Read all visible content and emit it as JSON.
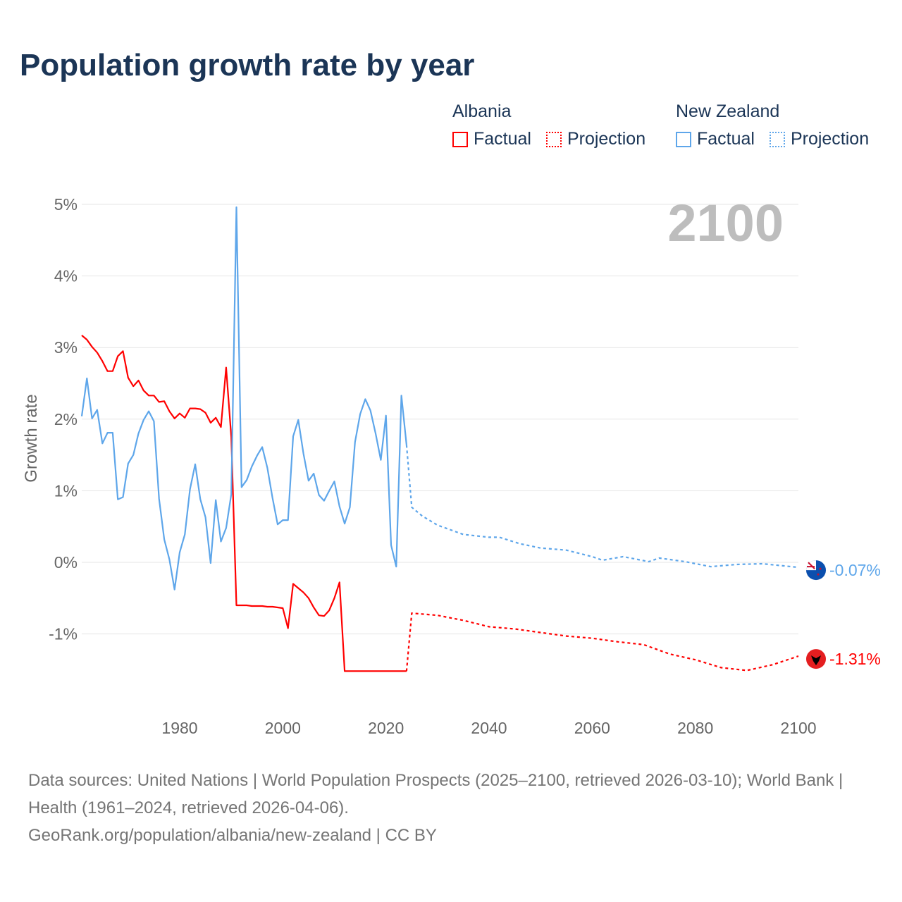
{
  "title": "Population growth rate by year",
  "legend": {
    "groups": [
      {
        "name": "Albania",
        "color": "#ff0000",
        "factual": "Factual",
        "projection": "Projection"
      },
      {
        "name": "New Zealand",
        "color": "#5ea6ea",
        "factual": "Factual",
        "projection": "Projection"
      }
    ]
  },
  "year_display": "2100",
  "footer": {
    "sources": "Data sources: United Nations | World Population Prospects (2025–2100, retrieved 2026-03-10); World Bank | Health (1961–2024, retrieved 2026-04-06).",
    "link": "GeoRank.org/population/albania/new-zealand | CC BY"
  },
  "chart_data": {
    "type": "line",
    "title": "Population growth rate by year",
    "xlabel": "",
    "ylabel": "Growth rate",
    "xlim": [
      1961,
      2100
    ],
    "ylim": [
      -2,
      5
    ],
    "x_ticks": [
      1980,
      2000,
      2020,
      2040,
      2060,
      2080,
      2100
    ],
    "y_ticks": [
      -1,
      0,
      1,
      2,
      3,
      4,
      5
    ],
    "y_tick_labels": [
      "-1%",
      "0%",
      "1%",
      "2%",
      "3%",
      "4%",
      "5%"
    ],
    "grid": true,
    "legend_position": "top-right",
    "series": [
      {
        "name": "Albania Factual",
        "country": "Albania",
        "style": "solid",
        "color": "#ff0000",
        "x_start": 1961,
        "values": [
          3.17,
          3.11,
          3.01,
          2.93,
          2.81,
          2.67,
          2.67,
          2.88,
          2.95,
          2.58,
          2.46,
          2.54,
          2.4,
          2.33,
          2.33,
          2.24,
          2.25,
          2.11,
          2.01,
          2.08,
          2.02,
          2.15,
          2.15,
          2.14,
          2.09,
          1.95,
          2.02,
          1.89,
          2.72,
          1.75,
          -0.6,
          -0.6,
          -0.6,
          -0.61,
          -0.61,
          -0.61,
          -0.62,
          -0.62,
          -0.63,
          -0.64,
          -0.92,
          -0.3,
          -0.36,
          -0.42,
          -0.5,
          -0.63,
          -0.74,
          -0.75,
          -0.67,
          -0.5,
          -0.28,
          -1.52,
          -1.52,
          -1.52,
          -1.52,
          -1.52,
          -1.52,
          -1.52,
          -1.52,
          -1.52,
          -1.52,
          -1.52,
          -1.52,
          -1.52
        ]
      },
      {
        "name": "Albania Projection",
        "country": "Albania",
        "style": "dotted",
        "color": "#ff0000",
        "x": [
          2024,
          2025,
          2030,
          2035,
          2040,
          2045,
          2050,
          2055,
          2060,
          2065,
          2070,
          2075,
          2080,
          2085,
          2090,
          2095,
          2100
        ],
        "values": [
          -1.52,
          -0.71,
          -0.74,
          -0.81,
          -0.9,
          -0.93,
          -0.98,
          -1.03,
          -1.06,
          -1.11,
          -1.15,
          -1.28,
          -1.36,
          -1.47,
          -1.51,
          -1.43,
          -1.31
        ]
      },
      {
        "name": "New Zealand Factual",
        "country": "New Zealand",
        "style": "solid",
        "color": "#5ea6ea",
        "x_start": 1961,
        "values": [
          2.04,
          2.57,
          2.01,
          2.13,
          1.66,
          1.81,
          1.81,
          0.88,
          0.91,
          1.38,
          1.5,
          1.8,
          1.99,
          2.11,
          1.97,
          0.89,
          0.32,
          0.04,
          -0.38,
          0.14,
          0.39,
          1.02,
          1.37,
          0.88,
          0.63,
          -0.01,
          0.87,
          0.29,
          0.48,
          0.95,
          4.96,
          1.05,
          1.15,
          1.34,
          1.49,
          1.61,
          1.32,
          0.9,
          0.53,
          0.59,
          0.59,
          1.76,
          1.99,
          1.52,
          1.14,
          1.24,
          0.94,
          0.86,
          1.0,
          1.13,
          0.78,
          0.54,
          0.77,
          1.68,
          2.07,
          2.28,
          2.12,
          1.8,
          1.43,
          2.05,
          0.24,
          -0.06,
          2.33,
          1.64
        ]
      },
      {
        "name": "New Zealand Projection",
        "country": "New Zealand",
        "style": "dotted",
        "color": "#5ea6ea",
        "x": [
          2024,
          2025,
          2027,
          2030,
          2035,
          2040,
          2042,
          2046,
          2050,
          2055,
          2060,
          2062,
          2066,
          2071,
          2073,
          2078,
          2083,
          2088,
          2093,
          2100
        ],
        "values": [
          1.64,
          0.77,
          0.65,
          0.52,
          0.39,
          0.35,
          0.35,
          0.26,
          0.2,
          0.17,
          0.08,
          0.03,
          0.08,
          0.01,
          0.06,
          0.01,
          -0.06,
          -0.03,
          -0.02,
          -0.07
        ]
      }
    ],
    "end_labels": [
      {
        "country": "New Zealand",
        "value": -0.07,
        "label": "-0.07%",
        "color": "#5ea6ea"
      },
      {
        "country": "Albania",
        "value": -1.31,
        "label": "-1.31%",
        "color": "#ff0000"
      }
    ]
  }
}
